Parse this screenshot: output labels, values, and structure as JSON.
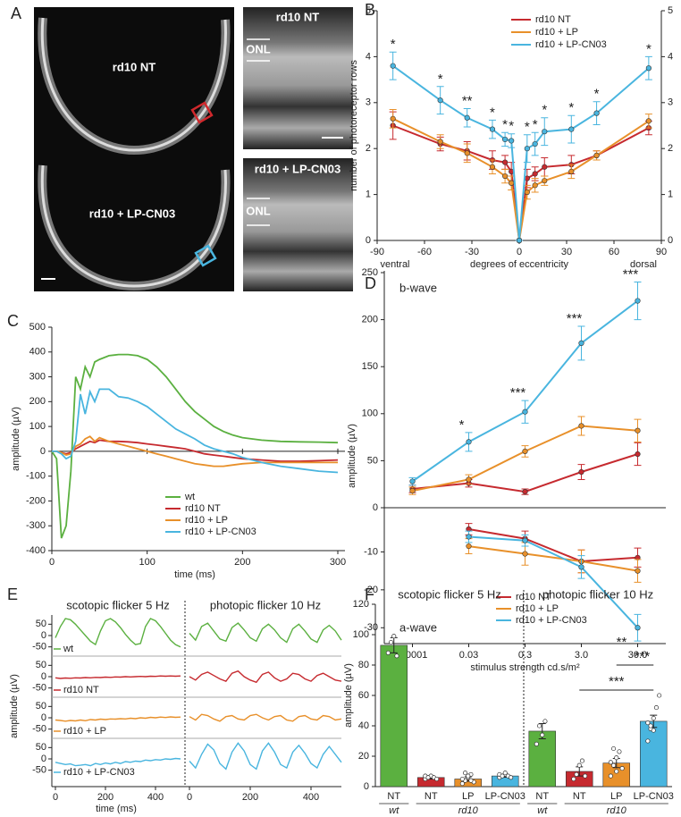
{
  "panel_a": {
    "panel": "A",
    "image_labels": {
      "top_large": "rd10 NT",
      "bottom_large": "rd10 + LP-CN03",
      "top_small": "rd10 NT",
      "onl_top": "ONL",
      "bottom_small": "rd10 + LP-CN03",
      "onl_bottom": "ONL"
    }
  },
  "chart_data": [
    {
      "type": "line",
      "panel": "B",
      "xlabel": "degrees of eccentricity",
      "xlabel_left": "ventral",
      "xlabel_right": "dorsal",
      "ylabel": "number of photoreceptor rows",
      "x": [
        -80,
        -50,
        -33,
        -17,
        -9,
        -5,
        0,
        5,
        10,
        16,
        33,
        49,
        82
      ],
      "xlim": [
        -90,
        90
      ],
      "xticks": [
        -90,
        -60,
        -30,
        0,
        30,
        60,
        90
      ],
      "ylim": [
        0,
        5
      ],
      "yticks": [
        0,
        1,
        2,
        3,
        4,
        5
      ],
      "y2lim": [
        0,
        5
      ],
      "y2ticks": [
        0,
        1,
        2,
        3,
        4,
        5
      ],
      "series": [
        {
          "name": "rd10 NT",
          "color": "#c62a2f",
          "values": [
            2.5,
            2.1,
            1.95,
            1.75,
            1.7,
            1.5,
            0,
            1.35,
            1.45,
            1.6,
            1.65,
            1.85,
            2.45
          ],
          "errors": [
            0.3,
            0.15,
            0.2,
            0.2,
            0.15,
            0.2,
            0,
            0.2,
            0.15,
            0.2,
            0.2,
            0.1,
            0.15
          ]
        },
        {
          "name": "rd10 + LP",
          "color": "#e8902a",
          "values": [
            2.65,
            2.15,
            1.9,
            1.6,
            1.4,
            1.25,
            0,
            1.05,
            1.2,
            1.3,
            1.5,
            1.85,
            2.6
          ],
          "errors": [
            0.2,
            0.15,
            0.2,
            0.15,
            0.15,
            0.15,
            0,
            0.15,
            0.15,
            0.1,
            0.15,
            0.1,
            0.15
          ]
        },
        {
          "name": "rd10 + LP-CN03",
          "color": "#49b5df",
          "values": [
            3.8,
            3.05,
            2.67,
            2.42,
            2.2,
            2.17,
            0,
            2.0,
            2.1,
            2.37,
            2.42,
            2.77,
            3.75
          ],
          "errors": [
            0.3,
            0.3,
            0.2,
            0.2,
            0.15,
            0.15,
            0,
            0.3,
            0.25,
            0.3,
            0.3,
            0.25,
            0.25
          ]
        }
      ],
      "significance": [
        "*",
        "*",
        "**",
        "*",
        "*",
        "*",
        null,
        "*",
        "*",
        "*",
        "*",
        "*",
        "*"
      ]
    },
    {
      "type": "line",
      "panel": "C",
      "xlabel": "time (ms)",
      "ylabel": "amplitude (µV)",
      "x": [
        0,
        5,
        10,
        15,
        20,
        25,
        30,
        35,
        40,
        45,
        50,
        60,
        70,
        80,
        90,
        100,
        110,
        120,
        130,
        140,
        150,
        160,
        170,
        180,
        190,
        200,
        220,
        240,
        260,
        280,
        300
      ],
      "xlim": [
        0,
        300
      ],
      "xticks": [
        0,
        100,
        200,
        300
      ],
      "ylim": [
        -400,
        500
      ],
      "yticks": [
        -400,
        -300,
        -200,
        -100,
        0,
        100,
        200,
        300,
        400,
        500
      ],
      "series": [
        {
          "name": "wt",
          "color": "#5bb040",
          "values": [
            0,
            -30,
            -350,
            -300,
            -80,
            300,
            250,
            340,
            300,
            360,
            370,
            385,
            390,
            390,
            385,
            370,
            340,
            300,
            250,
            200,
            160,
            130,
            100,
            80,
            65,
            55,
            45,
            40,
            38,
            37,
            35
          ]
        },
        {
          "name": "rd10 NT",
          "color": "#c62a2f",
          "values": [
            0,
            0,
            -5,
            -10,
            -5,
            10,
            20,
            30,
            40,
            35,
            45,
            40,
            40,
            38,
            35,
            30,
            25,
            20,
            15,
            10,
            0,
            -10,
            -15,
            -20,
            -25,
            -30,
            -35,
            -40,
            -40,
            -38,
            -35
          ]
        },
        {
          "name": "rd10 + LP",
          "color": "#e8902a",
          "values": [
            0,
            0,
            -5,
            -15,
            -10,
            20,
            30,
            50,
            60,
            40,
            55,
            40,
            30,
            20,
            10,
            0,
            -10,
            -20,
            -30,
            -40,
            -50,
            -55,
            -60,
            -60,
            -55,
            -50,
            -45,
            -45,
            -45,
            -45,
            -45
          ]
        },
        {
          "name": "rd10 + LP-CN03",
          "color": "#49b5df",
          "values": [
            0,
            0,
            -10,
            -30,
            -20,
            40,
            230,
            150,
            240,
            200,
            250,
            250,
            220,
            215,
            200,
            180,
            150,
            120,
            90,
            70,
            50,
            25,
            10,
            0,
            -10,
            -25,
            -45,
            -60,
            -70,
            -80,
            -85
          ]
        }
      ]
    },
    {
      "type": "line-split",
      "panel": "D",
      "xlabel": "stimulus strength cd.s/m²",
      "ylabel": "amplitude (µV)",
      "categories": [
        "0.0001",
        "0.03",
        "0.3",
        "3.0",
        "30.0"
      ],
      "series": [
        {
          "name": "rd10 NT",
          "color": "#c62a2f"
        },
        {
          "name": "rd10 + LP",
          "color": "#e8902a"
        },
        {
          "name": "rd10 + LP-CN03",
          "color": "#49b5df"
        }
      ],
      "panels": [
        {
          "label": "b-wave",
          "ylim": [
            0,
            250
          ],
          "yticks": [
            0,
            50,
            100,
            150,
            200,
            250
          ],
          "values": [
            [
              20,
              26,
              17,
              38,
              57
            ],
            [
              18,
              30,
              60,
              87,
              82
            ],
            [
              28,
              70,
              102,
              175,
              220
            ]
          ],
          "errors": [
            [
              4,
              4,
              3,
              8,
              12
            ],
            [
              4,
              5,
              6,
              10,
              12
            ],
            [
              4,
              10,
              12,
              18,
              20
            ]
          ],
          "significance": [
            null,
            "*",
            "***",
            "***",
            "***"
          ]
        },
        {
          "label": "a-wave",
          "ylim": [
            -33,
            0
          ],
          "yticks": [
            -30,
            -20,
            -10
          ],
          "values": [
            [
              null,
              -4,
              -6.5,
              -12.5,
              -11.5
            ],
            [
              null,
              -8.5,
              -10.5,
              -12.5,
              -15
            ],
            [
              null,
              -6,
              -7,
              -14,
              -30
            ]
          ],
          "errors": [
            [
              null,
              1.5,
              2,
              3,
              2.5
            ],
            [
              null,
              2,
              3,
              3,
              3
            ],
            [
              null,
              1.5,
              1.5,
              3,
              3.5
            ]
          ],
          "significance": [
            null,
            null,
            null,
            null,
            "**"
          ]
        }
      ]
    },
    {
      "type": "flicker",
      "panel": "E",
      "xlabel": "time (ms)",
      "ylabel": "amplitude (µV)",
      "x": [
        0,
        20,
        40,
        60,
        80,
        100,
        120,
        140,
        160,
        180,
        200,
        220,
        240,
        260,
        280,
        300,
        320,
        340,
        360,
        380,
        400,
        420,
        440,
        460,
        480,
        500
      ],
      "xlim": [
        0,
        500
      ],
      "xticks": [
        0,
        200,
        400
      ],
      "ylim": [
        -75,
        75
      ],
      "yticks": [
        -50,
        0,
        50
      ],
      "series": [
        {
          "name": "wt",
          "color": "#5bb040"
        },
        {
          "name": "rd10 NT",
          "color": "#c62a2f"
        },
        {
          "name": "rd10 + LP",
          "color": "#e8902a"
        },
        {
          "name": "rd10 + LP-CN03",
          "color": "#49b5df"
        }
      ],
      "conditions": [
        {
          "title": "scotopic flicker 5 Hz",
          "values": [
            [
              -10,
              40,
              75,
              70,
              50,
              25,
              0,
              -25,
              -40,
              20,
              65,
              75,
              60,
              35,
              5,
              -20,
              -40,
              -35,
              40,
              75,
              65,
              40,
              10,
              -20,
              -40,
              -50
            ],
            [
              -5,
              -8,
              -6,
              -7,
              -5,
              -6,
              -4,
              -5,
              -3,
              -4,
              -2,
              -3,
              -1,
              -2,
              0,
              -1,
              0,
              1,
              0,
              2,
              1,
              3,
              2,
              3,
              2,
              3
            ],
            [
              -10,
              -12,
              -15,
              -12,
              -14,
              -10,
              -13,
              -8,
              -10,
              -6,
              -8,
              -5,
              -6,
              -4,
              -5,
              -2,
              -4,
              0,
              -2,
              2,
              0,
              3,
              1,
              4,
              2,
              3
            ],
            [
              -15,
              -20,
              -25,
              -22,
              -30,
              -28,
              -25,
              -30,
              -20,
              -25,
              -18,
              -22,
              -15,
              -20,
              -12,
              -15,
              -10,
              -12,
              -5,
              -8,
              -3,
              -5,
              0,
              -2,
              2,
              0
            ]
          ]
        },
        {
          "title": "photopic flicker 10 Hz",
          "values": [
            [
              10,
              -20,
              40,
              55,
              20,
              -15,
              -25,
              35,
              55,
              25,
              -10,
              -25,
              30,
              50,
              25,
              -10,
              -30,
              30,
              50,
              20,
              -15,
              -30,
              25,
              45,
              20,
              -20
            ],
            [
              0,
              -15,
              10,
              20,
              5,
              -10,
              -20,
              15,
              25,
              0,
              -15,
              -25,
              10,
              20,
              -5,
              -20,
              -10,
              15,
              10,
              -10,
              -20,
              5,
              15,
              0,
              -15,
              -20
            ],
            [
              5,
              -10,
              15,
              10,
              -5,
              -15,
              5,
              10,
              -5,
              -10,
              10,
              15,
              0,
              -10,
              5,
              10,
              -10,
              -15,
              5,
              10,
              -5,
              -10,
              10,
              5,
              -10,
              -5
            ],
            [
              -10,
              -40,
              20,
              65,
              40,
              -20,
              -45,
              30,
              70,
              35,
              -25,
              -45,
              35,
              70,
              30,
              -25,
              -40,
              30,
              60,
              25,
              -20,
              -40,
              20,
              55,
              20,
              -15
            ]
          ]
        }
      ]
    },
    {
      "type": "bar",
      "panel": "F",
      "ylabel": "amplitude (µV)",
      "section_titles": [
        "scotopic flicker 5 Hz",
        "photopic flicker 10 Hz"
      ],
      "categories": [
        "NT",
        "NT",
        "LP",
        "LP-CN03",
        "NT",
        "NT",
        "LP",
        "LP-CN03"
      ],
      "group_labels": [
        "wt",
        "rd10",
        "wt",
        "rd10"
      ],
      "colors": [
        "#5bb040",
        "#c62a2f",
        "#e8902a",
        "#49b5df",
        "#5bb040",
        "#c62a2f",
        "#e8902a",
        "#49b5df"
      ],
      "values": [
        93,
        6,
        5,
        7,
        36.5,
        10,
        15.5,
        43
      ],
      "errors": [
        5,
        1,
        1.5,
        0.8,
        5,
        3,
        3,
        4
      ],
      "points": [
        [
          88,
          95,
          99,
          86
        ],
        [
          5,
          6,
          7,
          6,
          5,
          7,
          6
        ],
        [
          2,
          4,
          6,
          8,
          3,
          5,
          9,
          7,
          4
        ],
        [
          6,
          7,
          8,
          7,
          6,
          8,
          7,
          9
        ],
        [
          28,
          40,
          34,
          43
        ],
        [
          5,
          8,
          14,
          17,
          7
        ],
        [
          7,
          14,
          19,
          23,
          12,
          16,
          25,
          10
        ],
        [
          30,
          38,
          45,
          52,
          60,
          42,
          40,
          37
        ]
      ],
      "ylim": [
        0,
        120
      ],
      "yticks": [
        0,
        20,
        40,
        60,
        80,
        100,
        120
      ],
      "significance": [
        "***",
        "***"
      ]
    }
  ]
}
